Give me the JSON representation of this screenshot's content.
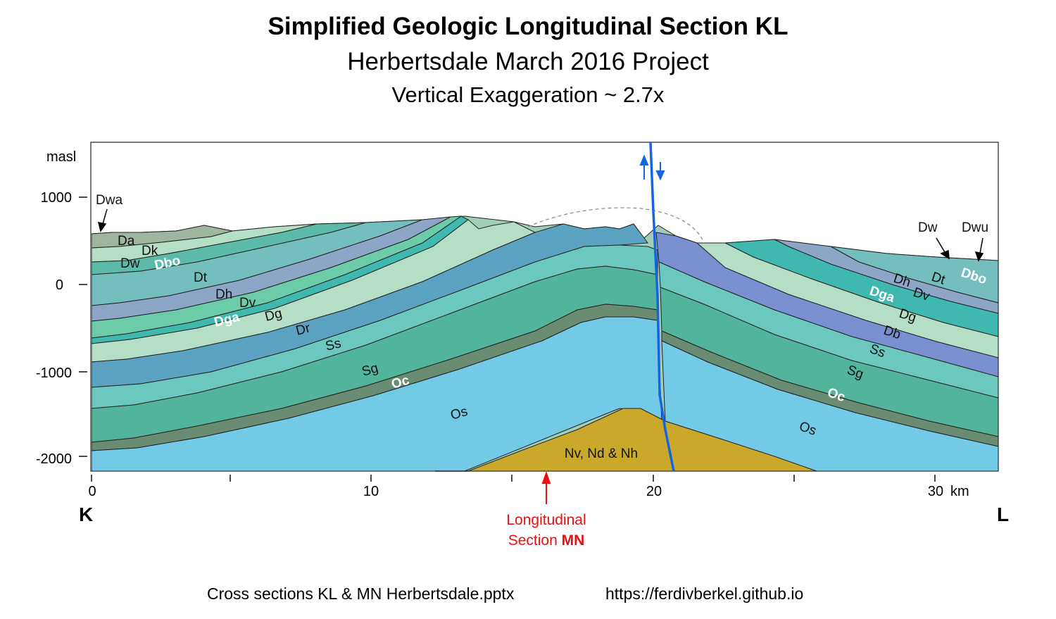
{
  "title": {
    "line1": "Simplified Geologic Longitudinal Section KL",
    "line2": "Herbertsdale March 2016 Project",
    "line3": "Vertical Exaggeration ~ 2.7x"
  },
  "axis": {
    "y_unit": "masl",
    "y_ticks": [
      "1000",
      "0",
      "-1000",
      "-2000"
    ],
    "x_ticks": [
      "0",
      "10",
      "20",
      "30"
    ],
    "x_unit": "km",
    "end_left": "K",
    "end_right": "L"
  },
  "units_left": {
    "Dwa": "Dwa",
    "Da": "Da",
    "Dk": "Dk",
    "Dw": "Dw",
    "Dbo": "Dbo",
    "Dt": "Dt",
    "Dh": "Dh",
    "Dv": "Dv",
    "Dga": "Dga",
    "Dg": "Dg",
    "Dr": "Dr",
    "Ss": "Ss",
    "Sg": "Sg",
    "Oc": "Oc",
    "Os": "Os"
  },
  "units_right": {
    "Dw": "Dw",
    "Dwu": "Dwu",
    "Dbo": "Dbo",
    "Dt": "Dt",
    "Dh": "Dh",
    "Dv": "Dv",
    "Dga": "Dga",
    "Dg": "Dg",
    "Db": "Db",
    "Ss": "Ss",
    "Sg": "Sg",
    "Oc": "Oc",
    "Os": "Os"
  },
  "basement_label": "Nv, Nd & Nh",
  "marker": {
    "line1": "Longitudinal",
    "line2": "Section ",
    "line2_bold": "MN"
  },
  "footer": {
    "file": "Cross sections KL & MN Herbertsdale.pptx",
    "url": "https://ferdivberkel.github.io"
  },
  "colors": {
    "basement": "#c9a82a",
    "os": "#73cae6",
    "oc": "#6a8c72",
    "sg": "#52b59b",
    "ss": "#6cc7bf",
    "dr": "#5ba1c1",
    "db": "#7a8fcf",
    "light": "#b4dfc6",
    "dga": "#3fb8b0",
    "dv": "#6ccba8",
    "dh": "#8da6c8",
    "dt": "#74bfbd",
    "dbo": "#5cbaa8",
    "upper": "#a2cdb6",
    "top": "#9fb59f",
    "fault": "#1565e0",
    "marker": "#e81010"
  }
}
